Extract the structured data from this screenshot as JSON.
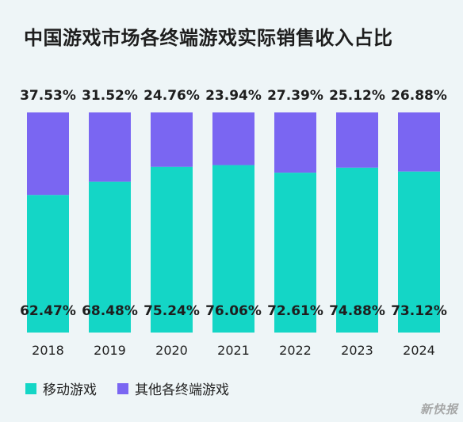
{
  "title": "中国游戏市场各终端游戏实际销售收入占比",
  "watermark": "新快报",
  "colors": {
    "mobile": "#14d6c6",
    "other": "#7a66f2"
  },
  "chart_data": {
    "type": "bar",
    "stacked": true,
    "categories": [
      "2018",
      "2019",
      "2020",
      "2021",
      "2022",
      "2023",
      "2024"
    ],
    "series": [
      {
        "name": "移动游戏",
        "values": [
          62.47,
          68.48,
          75.24,
          76.06,
          72.61,
          74.88,
          73.12
        ],
        "labels": [
          "62.47%",
          "68.48%",
          "75.24%",
          "76.06%",
          "72.61%",
          "74.88%",
          "73.12%"
        ]
      },
      {
        "name": "其他各终端游戏",
        "values": [
          37.53,
          31.52,
          24.76,
          23.94,
          27.39,
          25.12,
          26.88
        ],
        "labels": [
          "37.53%",
          "31.52%",
          "24.76%",
          "23.94%",
          "27.39%",
          "25.12%",
          "26.88%"
        ]
      }
    ],
    "ylim": [
      0,
      100
    ],
    "legend": "bottom-left",
    "grid": false
  }
}
